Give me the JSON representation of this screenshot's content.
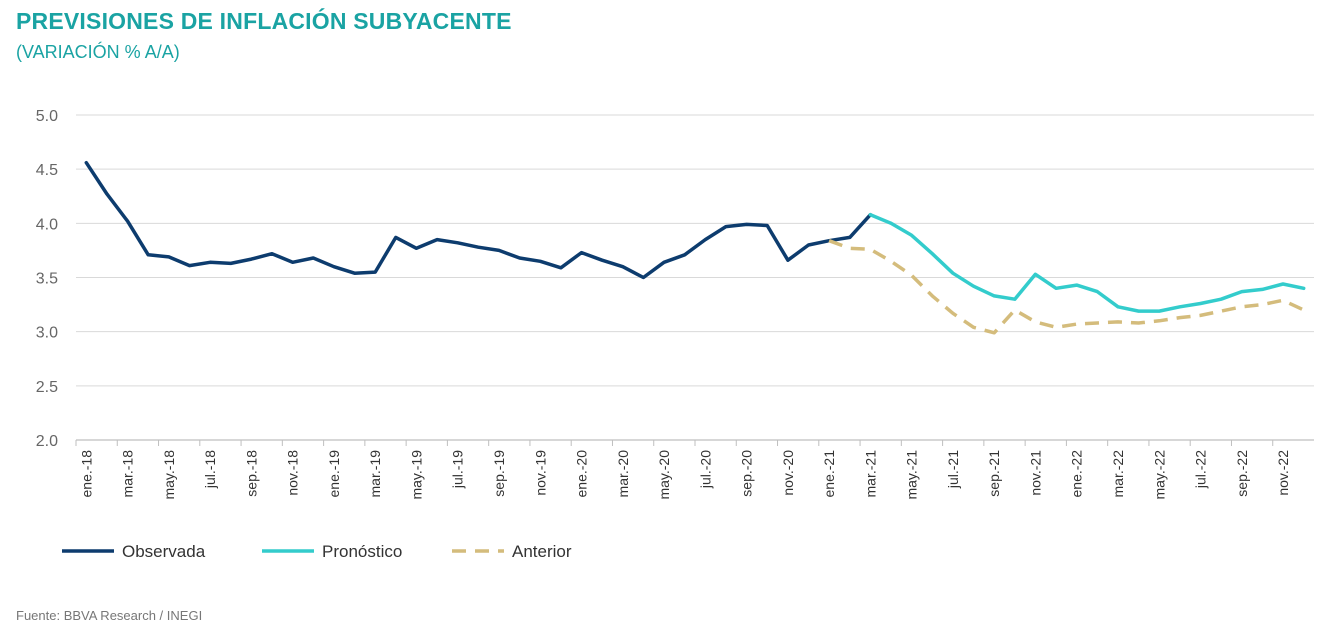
{
  "header": {
    "title": "PREVISIONES DE INFLACIÓN SUBYACENTE",
    "subtitle": "(VARIACIÓN % A/A)"
  },
  "footer": {
    "source": "Fuente: BBVA Research / INEGI"
  },
  "chart_data": {
    "type": "line",
    "title": "PREVISIONES DE INFLACIÓN SUBYACENTE",
    "subtitle": "(VARIACIÓN % A/A)",
    "xlabel": "",
    "ylabel": "",
    "ylim": [
      2.0,
      5.0
    ],
    "yticks": [
      "5.0",
      "4.5",
      "4.0",
      "3.5",
      "3.0",
      "2.5",
      "2.0"
    ],
    "grid": true,
    "legend_position": "bottom-left",
    "x": [
      "ene.-18",
      "feb.-18",
      "mar.-18",
      "abr.-18",
      "may.-18",
      "jun.-18",
      "jul.-18",
      "ago.-18",
      "sep.-18",
      "oct.-18",
      "nov.-18",
      "dic.-18",
      "ene.-19",
      "feb.-19",
      "mar.-19",
      "abr.-19",
      "may.-19",
      "jun.-19",
      "jul.-19",
      "ago.-19",
      "sep.-19",
      "oct.-19",
      "nov.-19",
      "dic.-19",
      "ene.-20",
      "feb.-20",
      "mar.-20",
      "abr.-20",
      "may.-20",
      "jun.-20",
      "jul.-20",
      "ago.-20",
      "sep.-20",
      "oct.-20",
      "nov.-20",
      "dic.-20",
      "ene.-21",
      "feb.-21",
      "mar.-21",
      "abr.-21",
      "may.-21",
      "jun.-21",
      "jul.-21",
      "ago.-21",
      "sep.-21",
      "oct.-21",
      "nov.-21",
      "dic.-21",
      "ene.-22",
      "feb.-22",
      "mar.-22",
      "abr.-22",
      "may.-22",
      "jun.-22",
      "jul.-22",
      "ago.-22",
      "sep.-22",
      "oct.-22",
      "nov.-22",
      "dic.-22"
    ],
    "x_tick_labels": [
      "ene.-18",
      "mar.-18",
      "may.-18",
      "jul.-18",
      "sep.-18",
      "nov.-18",
      "ene.-19",
      "mar.-19",
      "may.-19",
      "jul.-19",
      "sep.-19",
      "nov.-19",
      "ene.-20",
      "mar.-20",
      "may.-20",
      "jul.-20",
      "sep.-20",
      "nov.-20",
      "ene.-21",
      "mar.-21",
      "may.-21",
      "jul.-21",
      "sep.-21",
      "nov.-21",
      "ene.-22",
      "mar.-22",
      "may.-22",
      "jul.-22",
      "sep.-22",
      "nov.-22"
    ],
    "series": [
      {
        "name": "Observada",
        "color": "#0d3c6e",
        "style": "solid",
        "values": [
          4.56,
          4.27,
          4.02,
          3.71,
          3.69,
          3.61,
          3.64,
          3.63,
          3.67,
          3.72,
          3.64,
          3.68,
          3.6,
          3.54,
          3.55,
          3.87,
          3.77,
          3.85,
          3.82,
          3.78,
          3.75,
          3.68,
          3.65,
          3.59,
          3.73,
          3.66,
          3.6,
          3.5,
          3.64,
          3.71,
          3.85,
          3.97,
          3.99,
          3.98,
          3.66,
          3.8,
          3.84,
          3.87,
          4.08,
          null,
          null,
          null,
          null,
          null,
          null,
          null,
          null,
          null,
          null,
          null,
          null,
          null,
          null,
          null,
          null,
          null,
          null,
          null,
          null,
          null
        ]
      },
      {
        "name": "Pronóstico",
        "color": "#33cccc",
        "style": "solid",
        "values": [
          null,
          null,
          null,
          null,
          null,
          null,
          null,
          null,
          null,
          null,
          null,
          null,
          null,
          null,
          null,
          null,
          null,
          null,
          null,
          null,
          null,
          null,
          null,
          null,
          null,
          null,
          null,
          null,
          null,
          null,
          null,
          null,
          null,
          null,
          null,
          null,
          null,
          null,
          4.08,
          4.0,
          3.89,
          3.72,
          3.54,
          3.42,
          3.33,
          3.3,
          3.53,
          3.4,
          3.43,
          3.37,
          3.23,
          3.19,
          3.19,
          3.23,
          3.26,
          3.3,
          3.37,
          3.39,
          3.44,
          3.4
        ]
      },
      {
        "name": "Anterior",
        "color": "#d4bc7c",
        "style": "dashed",
        "values": [
          null,
          null,
          null,
          null,
          null,
          null,
          null,
          null,
          null,
          null,
          null,
          null,
          null,
          null,
          null,
          null,
          null,
          null,
          null,
          null,
          null,
          null,
          null,
          null,
          null,
          null,
          null,
          null,
          null,
          null,
          null,
          null,
          null,
          null,
          null,
          null,
          3.84,
          3.77,
          3.76,
          3.65,
          3.52,
          3.33,
          3.17,
          3.04,
          2.99,
          3.2,
          3.09,
          3.04,
          3.07,
          3.08,
          3.09,
          3.08,
          3.1,
          3.13,
          3.15,
          3.19,
          3.23,
          3.25,
          3.29,
          3.2
        ]
      }
    ]
  }
}
